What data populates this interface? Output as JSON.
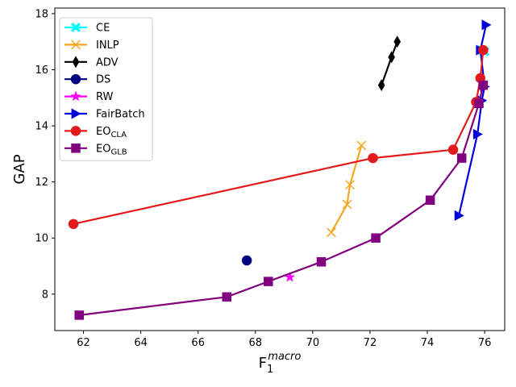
{
  "chart_data": {
    "type": "line",
    "title": "",
    "xlabel": "F",
    "xlabel_sub": "1",
    "xlabel_sup": "macro",
    "ylabel": "GAP",
    "xlim": [
      61.0,
      76.7
    ],
    "ylim": [
      6.7,
      18.2
    ],
    "xticks": [
      62,
      64,
      66,
      68,
      70,
      72,
      74,
      76
    ],
    "yticks": [
      8,
      10,
      12,
      14,
      16,
      18
    ],
    "legend_position": "upper-left",
    "series": [
      {
        "name": "CE",
        "name_main": "CE",
        "name_sub": "",
        "color": "#00ffff",
        "marker": "X",
        "points": [
          {
            "x": 75.9,
            "y": 16.7
          },
          {
            "x": 76.0,
            "y": 16.65
          }
        ]
      },
      {
        "name": "INLP",
        "name_main": "INLP",
        "name_sub": "",
        "color": "#f5a623",
        "marker": "x",
        "points": [
          {
            "x": 70.65,
            "y": 10.2
          },
          {
            "x": 71.2,
            "y": 11.2
          },
          {
            "x": 71.3,
            "y": 11.9
          },
          {
            "x": 71.7,
            "y": 13.3
          }
        ]
      },
      {
        "name": "ADV",
        "name_main": "ADV",
        "name_sub": "",
        "color": "#000000",
        "marker": "d",
        "points": [
          {
            "x": 72.4,
            "y": 15.45
          },
          {
            "x": 72.75,
            "y": 16.45
          },
          {
            "x": 72.95,
            "y": 17.0
          }
        ]
      },
      {
        "name": "DS",
        "name_main": "DS",
        "name_sub": "",
        "color": "#000080",
        "marker": "o",
        "points": [
          {
            "x": 67.7,
            "y": 9.2
          }
        ]
      },
      {
        "name": "RW",
        "name_main": "RW",
        "name_sub": "",
        "color": "#ff00ff",
        "marker": "*",
        "points": [
          {
            "x": 69.2,
            "y": 8.6
          }
        ]
      },
      {
        "name": "FairBatch",
        "name_main": "FairBatch",
        "name_sub": "",
        "color": "#0000dd",
        "marker": ">",
        "points": [
          {
            "x": 75.1,
            "y": 10.8
          },
          {
            "x": 75.75,
            "y": 13.7
          },
          {
            "x": 75.9,
            "y": 14.9
          },
          {
            "x": 76.0,
            "y": 15.4
          },
          {
            "x": 75.85,
            "y": 16.7
          },
          {
            "x": 76.05,
            "y": 17.6
          }
        ]
      },
      {
        "name": "EOCLA",
        "name_main": "EO",
        "name_sub": "CLA",
        "color": "#e31a1c",
        "marker": "o",
        "points": [
          {
            "x": 61.65,
            "y": 10.5
          },
          {
            "x": 72.1,
            "y": 12.85
          },
          {
            "x": 74.9,
            "y": 13.15
          },
          {
            "x": 75.7,
            "y": 14.85
          },
          {
            "x": 75.85,
            "y": 15.7
          },
          {
            "x": 75.95,
            "y": 16.7
          }
        ]
      },
      {
        "name": "EOGLB",
        "name_main": "EO",
        "name_sub": "GLB",
        "color": "#800080",
        "marker": "s",
        "points": [
          {
            "x": 61.85,
            "y": 7.25
          },
          {
            "x": 67.0,
            "y": 7.9
          },
          {
            "x": 68.45,
            "y": 8.45
          },
          {
            "x": 70.3,
            "y": 9.15
          },
          {
            "x": 72.2,
            "y": 10.0
          },
          {
            "x": 74.1,
            "y": 11.35
          },
          {
            "x": 75.2,
            "y": 12.85
          },
          {
            "x": 75.8,
            "y": 14.8
          },
          {
            "x": 75.95,
            "y": 15.45
          }
        ]
      }
    ]
  }
}
